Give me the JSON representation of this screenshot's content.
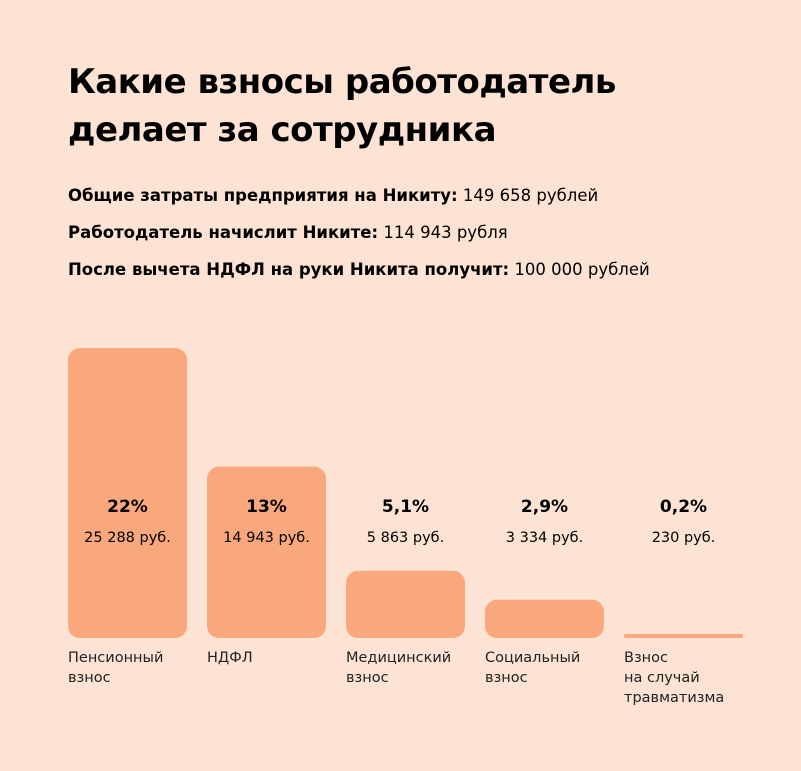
{
  "header": {
    "title_line1": "Какие взносы работодатель",
    "title_line2": "делает за сотрудника"
  },
  "facts": [
    {
      "label": "Общие затраты предприятия на Никиту:",
      "value": "149 658 рублей"
    },
    {
      "label": "Работодатель начислит Никите:",
      "value": "114 943 рубля"
    },
    {
      "label": "После вычета НДФЛ на руки Никита получит:",
      "value": "100 000 рублей"
    }
  ],
  "colors": {
    "bar": "#f8a87c",
    "background": "#fde3d4",
    "text": "#000000"
  },
  "chart_data": {
    "type": "bar",
    "categories": [
      [
        "Пенсионный",
        "взнос"
      ],
      [
        "НДФЛ"
      ],
      [
        "Медицинский",
        "взнос"
      ],
      [
        "Социальный",
        "взнос"
      ],
      [
        "Взнос",
        "на случай",
        "травматизма"
      ]
    ],
    "values": [
      22,
      13,
      5.1,
      2.9,
      0.2
    ],
    "value_labels": [
      "22%",
      "13%",
      "5,1%",
      "2,9%",
      "0,2%"
    ],
    "amount_labels": [
      "25 288 руб.",
      "14 943 руб.",
      "5 863 руб.",
      "3 334 руб.",
      "230 руб."
    ],
    "unit": "%",
    "ylim": [
      0,
      22
    ],
    "grid": false,
    "legend": false
  }
}
